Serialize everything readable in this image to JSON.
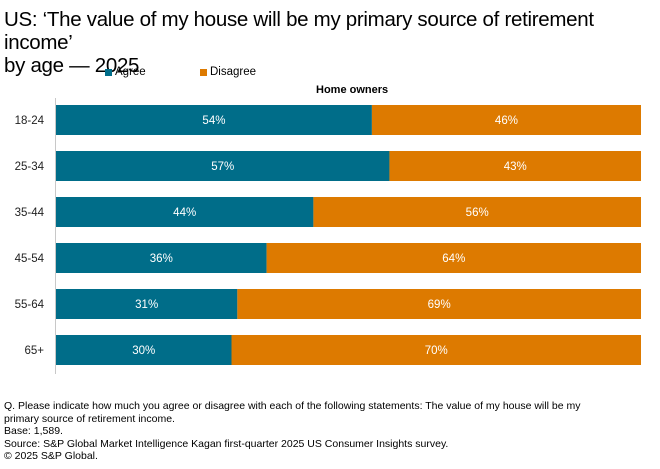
{
  "chart_data": {
    "type": "bar",
    "orientation": "horizontal",
    "stacked": true,
    "title": "US: ‘The value of my house will be my primary source of retirement income’ by age — 2025",
    "title_lines": [
      "US: ‘The value of my house will be my primary source of retirement income’",
      "by age — 2025"
    ],
    "subtitle": "Home owners",
    "categories": [
      "18-24",
      "25-34",
      "35-44",
      "45-54",
      "55-64",
      "65+"
    ],
    "series": [
      {
        "name": "Agree",
        "color": "#006d89",
        "values": [
          54,
          57,
          44,
          36,
          31,
          30
        ]
      },
      {
        "name": "Disagree",
        "color": "#dd7a00",
        "values": [
          46,
          43,
          56,
          64,
          69,
          70
        ]
      }
    ],
    "data_label_suffix": "%",
    "xlim": [
      0,
      100
    ],
    "legend_position": "top-left",
    "grid": false
  },
  "footnotes": [
    "Q. Please indicate how much you agree or disagree with each of the following statements: The value of my house will be my",
    "primary source of retirement income.",
    "Base: 1,589.",
    "Source: S&P Global Market Intelligence Kagan first-quarter 2025 US Consumer Insights survey.",
    "© 2025 S&P Global."
  ]
}
